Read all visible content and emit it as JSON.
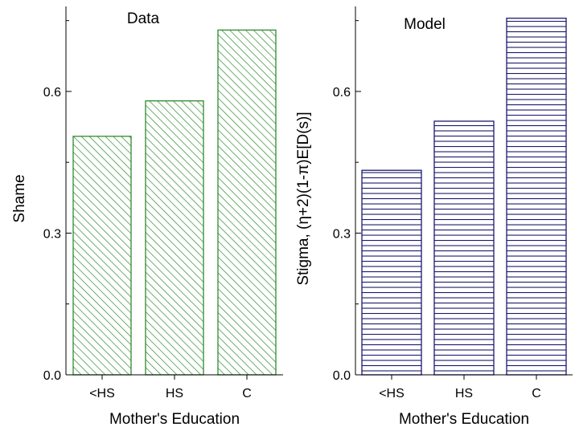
{
  "chart_data": [
    {
      "type": "bar",
      "title": "Data",
      "xlabel": "Mother's Education",
      "ylabel": "Shame",
      "categories": [
        "<HS",
        "HS",
        "C"
      ],
      "values": [
        0.505,
        0.58,
        0.73
      ],
      "ylim": [
        0,
        0.78
      ],
      "yticks": [
        "0.0",
        "0.3",
        "0.6"
      ],
      "grid": false,
      "color": "#2e8b2e",
      "fill_pattern": "diagonal-hatch"
    },
    {
      "type": "bar",
      "title": "Model",
      "xlabel": "Mother's Education",
      "ylabel": "Stigma, (η+2)(1-π)E[D(s)]",
      "categories": [
        "<HS",
        "HS",
        "C"
      ],
      "values": [
        0.433,
        0.537,
        0.755
      ],
      "ylim": [
        0,
        0.78
      ],
      "yticks": [
        "0.0",
        "0.3",
        "0.6"
      ],
      "grid": false,
      "color": "#1a1a6e",
      "fill_pattern": "horizontal-hatch"
    }
  ]
}
